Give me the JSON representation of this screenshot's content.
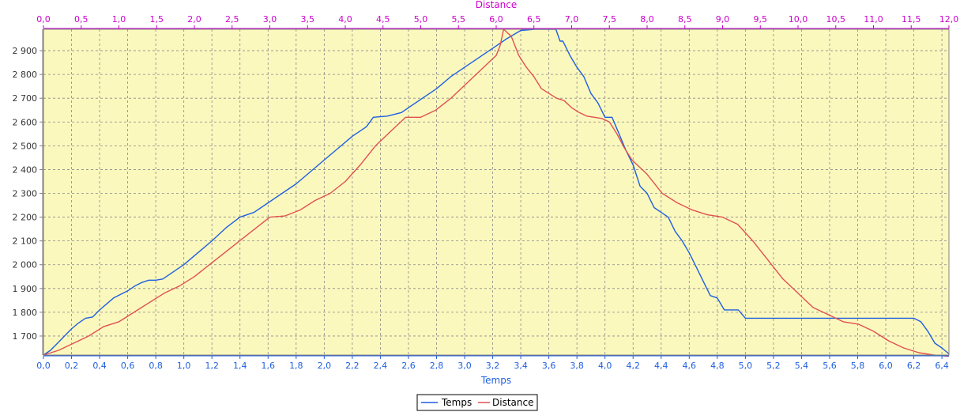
{
  "chart_data": {
    "type": "line",
    "xlabel_bottom": "Temps",
    "xlabel_top": "Distance",
    "ylabel": "",
    "x_bottom_range": [
      0,
      6.45
    ],
    "x_top_range": [
      0,
      12.0
    ],
    "ylim": [
      1620,
      2990
    ],
    "grid": true,
    "legend_position": "bottom-center",
    "colors": {
      "temps": "#1f5fe0",
      "distance": "#e05050",
      "top_axis": "#cc00cc",
      "bottom_axis": "#1f5fe0",
      "plot_bg": "#fbf8be",
      "grid": "#888888"
    },
    "bottom_ticks": [
      "0,0",
      "0,2",
      "0,4",
      "0,6",
      "0,8",
      "1,0",
      "1,2",
      "1,4",
      "1,6",
      "1,8",
      "2,0",
      "2,2",
      "2,4",
      "2,6",
      "2,8",
      "3,0",
      "3,2",
      "3,4",
      "3,6",
      "3,8",
      "4,0",
      "4,2",
      "4,4",
      "4,6",
      "4,8",
      "5,0",
      "5,2",
      "5,4",
      "5,6",
      "5,8",
      "6,0",
      "6,2",
      "6,4"
    ],
    "top_ticks": [
      "0,0",
      "0,5",
      "1,0",
      "1,5",
      "2,0",
      "2,5",
      "3,0",
      "3,5",
      "4,0",
      "4,5",
      "5,0",
      "5,5",
      "6,0",
      "6,5",
      "7,0",
      "7,5",
      "8,0",
      "8,5",
      "9,0",
      "9,5",
      "10,0",
      "10,5",
      "11,0",
      "11,5",
      "12,0"
    ],
    "y_ticks": [
      "1 700",
      "1 800",
      "1 900",
      "2 000",
      "2 100",
      "2 200",
      "2 300",
      "2 400",
      "2 500",
      "2 600",
      "2 700",
      "2 800",
      "2 900"
    ],
    "series": [
      {
        "name": "Temps",
        "axis": "bottom",
        "x": [
          0.0,
          0.05,
          0.1,
          0.15,
          0.2,
          0.25,
          0.3,
          0.35,
          0.4,
          0.45,
          0.5,
          0.55,
          0.6,
          0.65,
          0.7,
          0.75,
          0.8,
          0.85,
          0.9,
          0.95,
          1.0,
          1.1,
          1.2,
          1.3,
          1.4,
          1.5,
          1.6,
          1.7,
          1.8,
          1.9,
          2.0,
          2.1,
          2.2,
          2.3,
          2.35,
          2.45,
          2.55,
          2.6,
          2.7,
          2.8,
          2.9,
          3.0,
          3.1,
          3.2,
          3.3,
          3.4,
          3.5,
          3.6,
          3.65,
          3.68,
          3.7,
          3.75,
          3.78,
          3.8,
          3.85,
          3.9,
          3.95,
          4.0,
          4.05,
          4.1,
          4.15,
          4.2,
          4.25,
          4.3,
          4.35,
          4.4,
          4.45,
          4.5,
          4.55,
          4.6,
          4.65,
          4.7,
          4.75,
          4.8,
          4.85,
          4.9,
          4.95,
          5.0,
          5.2,
          5.4,
          5.6,
          5.8,
          6.0,
          6.15,
          6.2,
          6.25,
          6.3,
          6.35,
          6.4,
          6.45
        ],
        "values": [
          1620,
          1640,
          1670,
          1700,
          1730,
          1755,
          1775,
          1780,
          1810,
          1835,
          1860,
          1875,
          1890,
          1910,
          1925,
          1935,
          1935,
          1940,
          1960,
          1980,
          2000,
          2050,
          2100,
          2155,
          2200,
          2220,
          2260,
          2300,
          2340,
          2390,
          2440,
          2490,
          2540,
          2580,
          2620,
          2625,
          2640,
          2660,
          2700,
          2740,
          2790,
          2830,
          2870,
          2910,
          2950,
          2985,
          2990,
          2990,
          2990,
          2940,
          2940,
          2880,
          2850,
          2830,
          2790,
          2720,
          2680,
          2620,
          2620,
          2550,
          2480,
          2420,
          2330,
          2300,
          2240,
          2220,
          2200,
          2140,
          2100,
          2050,
          1990,
          1930,
          1870,
          1860,
          1810,
          1810,
          1810,
          1775,
          1775,
          1775,
          1775,
          1775,
          1775,
          1775,
          1775,
          1760,
          1720,
          1670,
          1650,
          1625
        ]
      },
      {
        "name": "Distance",
        "axis": "top",
        "x": [
          0.0,
          0.2,
          0.4,
          0.6,
          0.8,
          1.0,
          1.2,
          1.4,
          1.6,
          1.8,
          2.0,
          2.2,
          2.4,
          2.6,
          2.8,
          3.0,
          3.2,
          3.4,
          3.6,
          3.8,
          4.0,
          4.2,
          4.4,
          4.6,
          4.8,
          5.0,
          5.2,
          5.4,
          5.6,
          5.8,
          6.0,
          6.05,
          6.1,
          6.2,
          6.3,
          6.4,
          6.5,
          6.6,
          6.7,
          6.8,
          6.9,
          7.0,
          7.1,
          7.2,
          7.3,
          7.4,
          7.5,
          7.6,
          7.7,
          7.8,
          7.9,
          8.0,
          8.2,
          8.4,
          8.6,
          8.8,
          9.0,
          9.2,
          9.4,
          9.6,
          9.8,
          10.0,
          10.2,
          10.4,
          10.6,
          10.8,
          11.0,
          11.2,
          11.4,
          11.6,
          11.8,
          12.0
        ],
        "values": [
          1620,
          1640,
          1670,
          1700,
          1740,
          1760,
          1800,
          1840,
          1880,
          1910,
          1950,
          2000,
          2050,
          2100,
          2150,
          2200,
          2205,
          2230,
          2270,
          2300,
          2350,
          2420,
          2500,
          2560,
          2620,
          2620,
          2650,
          2700,
          2760,
          2820,
          2880,
          2920,
          2990,
          2960,
          2880,
          2830,
          2790,
          2740,
          2720,
          2700,
          2690,
          2660,
          2640,
          2625,
          2620,
          2615,
          2600,
          2550,
          2490,
          2440,
          2410,
          2380,
          2300,
          2260,
          2230,
          2210,
          2200,
          2170,
          2100,
          2020,
          1940,
          1880,
          1820,
          1790,
          1760,
          1750,
          1720,
          1680,
          1650,
          1630,
          1620,
          1615
        ]
      }
    ]
  }
}
